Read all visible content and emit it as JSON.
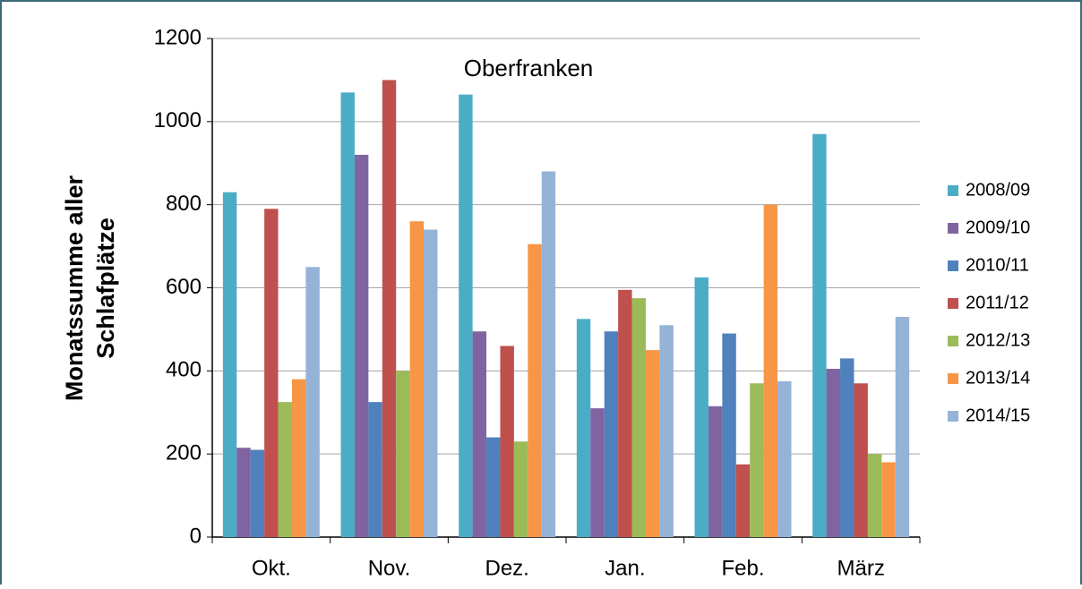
{
  "chart_data": {
    "type": "bar",
    "title": "Oberfranken",
    "y_label": [
      "Monatssumme aller",
      "Schlafplätze"
    ],
    "categories": [
      "Okt.",
      "Nov.",
      "Dez.",
      "Jan.",
      "Feb.",
      "März"
    ],
    "series": [
      {
        "name": "2008/09",
        "color": "#4bacc6",
        "values": [
          830,
          1070,
          1065,
          525,
          625,
          970
        ]
      },
      {
        "name": "2009/10",
        "color": "#8064a2",
        "values": [
          215,
          920,
          495,
          310,
          315,
          405
        ]
      },
      {
        "name": "2010/11",
        "color": "#4f81bd",
        "values": [
          210,
          325,
          240,
          495,
          490,
          430
        ]
      },
      {
        "name": "2011/12",
        "color": "#c0504d",
        "values": [
          790,
          1100,
          460,
          595,
          175,
          370
        ]
      },
      {
        "name": "2012/13",
        "color": "#9bbb59",
        "values": [
          325,
          400,
          230,
          575,
          370,
          200
        ]
      },
      {
        "name": "2013/14",
        "color": "#f79646",
        "values": [
          380,
          760,
          705,
          450,
          800,
          180
        ]
      },
      {
        "name": "2014/15",
        "color": "#95b3d7",
        "values": [
          650,
          740,
          880,
          510,
          375,
          530
        ]
      }
    ],
    "ylim": [
      0,
      1200
    ],
    "yticks": [
      0,
      200,
      400,
      600,
      800,
      1000,
      1200
    ],
    "grid": true,
    "legend": "right"
  }
}
